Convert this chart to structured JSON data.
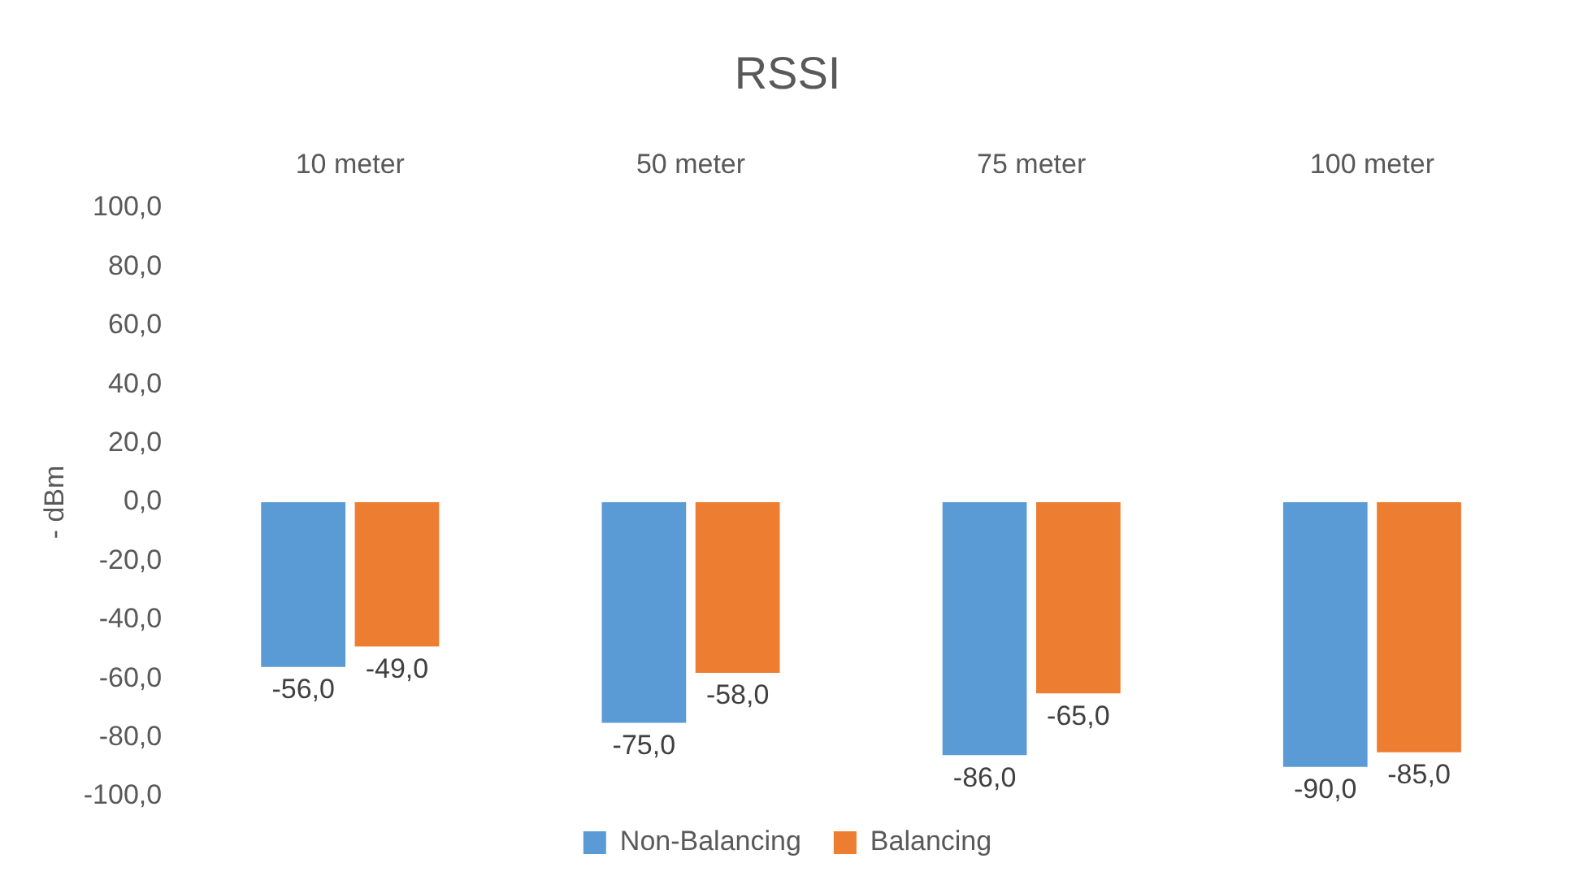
{
  "chart_data": {
    "type": "bar",
    "title": "RSSI",
    "ylabel": "- dBm",
    "categories": [
      "10 meter",
      "50 meter",
      "75 meter",
      "100 meter"
    ],
    "series": [
      {
        "name": "Non-Balancing",
        "color": "#5b9bd5",
        "values": [
          -56,
          -75,
          -86,
          -90
        ],
        "value_labels": [
          "-56,0",
          "-75,0",
          "-86,0",
          "-90,0"
        ]
      },
      {
        "name": "Balancing",
        "color": "#ed7d31",
        "values": [
          -49,
          -58,
          -65,
          -85
        ],
        "value_labels": [
          "-49,0",
          "-58,0",
          "-65,0",
          "-85,0"
        ]
      }
    ],
    "ylim": [
      -100,
      100
    ],
    "yticks": [
      {
        "value": 100,
        "label": "100,0"
      },
      {
        "value": 80,
        "label": "80,0"
      },
      {
        "value": 60,
        "label": "60,0"
      },
      {
        "value": 40,
        "label": "40,0"
      },
      {
        "value": 20,
        "label": "20,0"
      },
      {
        "value": 0,
        "label": "0,0"
      },
      {
        "value": -20,
        "label": "-20,0"
      },
      {
        "value": -40,
        "label": "-40,0"
      },
      {
        "value": -60,
        "label": "-60,0"
      },
      {
        "value": -80,
        "label": "-80,0"
      },
      {
        "value": -100,
        "label": "-100,0"
      }
    ],
    "grid": false,
    "legend": "bottom"
  }
}
